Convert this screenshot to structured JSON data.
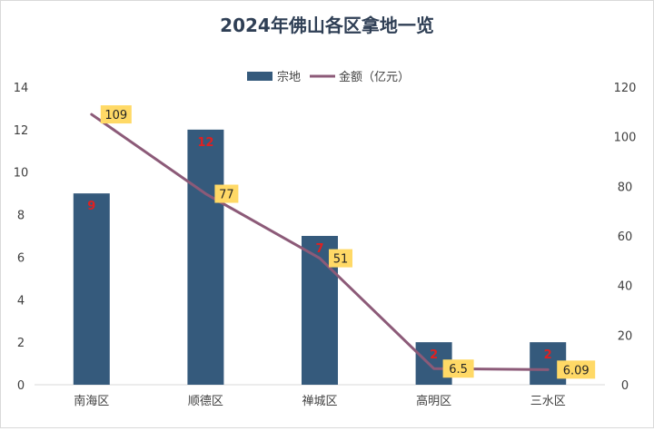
{
  "chart_data": {
    "type": "bar",
    "title": "2024年佛山各区拿地一览",
    "categories": [
      "南海区",
      "顺德区",
      "禅城区",
      "高明区",
      "三水区"
    ],
    "series": [
      {
        "name": "宗地",
        "type": "bar",
        "axis": "left",
        "values": [
          9,
          12,
          7,
          2,
          2
        ],
        "color": "#355a7c",
        "label_color": "#e02020"
      },
      {
        "name": "金额（亿元）",
        "type": "line",
        "axis": "right",
        "values": [
          109,
          77,
          51,
          6.5,
          6.09
        ],
        "labels": [
          "109",
          "77",
          "51",
          "6.5",
          "6.09"
        ],
        "color": "#8c5a78",
        "label_bg": "#ffd966"
      }
    ],
    "y_left": {
      "min": 0,
      "max": 14,
      "ticks": [
        0,
        2,
        4,
        6,
        8,
        10,
        12,
        14
      ]
    },
    "y_right": {
      "min": 0,
      "max": 120,
      "ticks": [
        0,
        20,
        40,
        60,
        80,
        100,
        120
      ]
    },
    "grid": false,
    "legend_position": "top"
  }
}
